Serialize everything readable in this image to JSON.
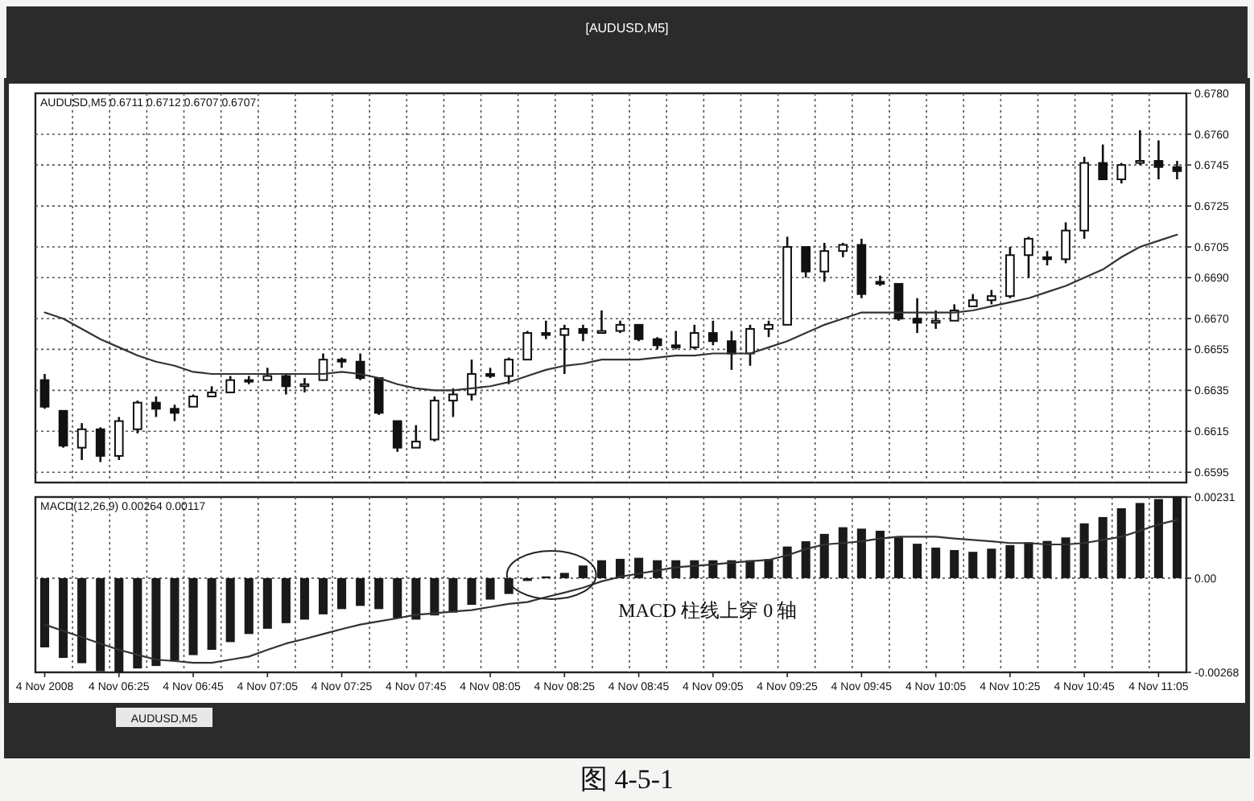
{
  "chart_data": [
    {
      "type": "candlestick",
      "title": "[AUDUSD,M5]",
      "subtitle": "AUDUSD,M5  0.6711 0.6712 0.6707 0.6707",
      "categories": [
        null,
        null,
        null,
        null,
        null,
        null,
        null,
        null,
        null,
        null,
        null,
        null,
        null,
        null,
        null,
        null,
        null,
        null,
        null,
        null,
        null,
        null,
        null,
        null,
        null,
        null,
        null,
        null,
        null,
        null,
        null,
        null,
        null,
        null,
        null,
        null,
        null,
        null,
        null,
        null,
        null,
        null,
        null,
        null,
        null,
        null,
        null,
        null,
        null,
        null,
        null,
        null,
        null,
        null,
        null,
        null,
        null,
        null,
        null,
        null,
        null,
        null
      ],
      "ohlc": [
        [
          0.664,
          0.6643,
          0.6626,
          0.6627
        ],
        [
          0.6625,
          0.6625,
          0.6607,
          0.6608
        ],
        [
          0.6607,
          0.6619,
          0.6601,
          0.6616
        ],
        [
          0.6616,
          0.6617,
          0.66,
          0.6603
        ],
        [
          0.6603,
          0.6622,
          0.6601,
          0.662
        ],
        [
          0.6616,
          0.663,
          0.6614,
          0.6629
        ],
        [
          0.6629,
          0.6632,
          0.6622,
          0.6626
        ],
        [
          0.6626,
          0.6628,
          0.662,
          0.6624
        ],
        [
          0.6627,
          0.6633,
          0.6627,
          0.6632
        ],
        [
          0.6632,
          0.6637,
          0.6632,
          0.6634
        ],
        [
          0.6634,
          0.6642,
          0.6634,
          0.664
        ],
        [
          0.664,
          0.6642,
          0.6638,
          0.664
        ],
        [
          0.664,
          0.6646,
          0.664,
          0.6642
        ],
        [
          0.6642,
          0.6643,
          0.6633,
          0.6637
        ],
        [
          0.6637,
          0.6641,
          0.6634,
          0.6638
        ],
        [
          0.664,
          0.6653,
          0.664,
          0.665
        ],
        [
          0.665,
          0.6651,
          0.6646,
          0.6649
        ],
        [
          0.6649,
          0.6653,
          0.664,
          0.6641
        ],
        [
          0.6641,
          0.6641,
          0.6623,
          0.6624
        ],
        [
          0.662,
          0.662,
          0.6605,
          0.6607
        ],
        [
          0.6607,
          0.6618,
          0.6607,
          0.661
        ],
        [
          0.6611,
          0.6632,
          0.661,
          0.663
        ],
        [
          0.663,
          0.6636,
          0.6622,
          0.6633
        ],
        [
          0.6633,
          0.665,
          0.663,
          0.6643
        ],
        [
          0.6643,
          0.6646,
          0.6641,
          0.6642
        ],
        [
          0.6642,
          0.6651,
          0.6638,
          0.665
        ],
        [
          0.665,
          0.6664,
          0.665,
          0.6663
        ],
        [
          0.6663,
          0.6669,
          0.666,
          0.6662
        ],
        [
          0.6662,
          0.6667,
          0.6643,
          0.6665
        ],
        [
          0.6665,
          0.6667,
          0.6659,
          0.6663
        ],
        [
          0.6663,
          0.6674,
          0.6663,
          0.6664
        ],
        [
          0.6664,
          0.6669,
          0.6663,
          0.6667
        ],
        [
          0.6667,
          0.6667,
          0.6659,
          0.666
        ],
        [
          0.666,
          0.6661,
          0.6655,
          0.6657
        ],
        [
          0.6657,
          0.6664,
          0.6655,
          0.6656
        ],
        [
          0.6656,
          0.6667,
          0.6655,
          0.6663
        ],
        [
          0.6663,
          0.6669,
          0.6657,
          0.6659
        ],
        [
          0.6659,
          0.6664,
          0.6645,
          0.6653
        ],
        [
          0.6653,
          0.6667,
          0.6647,
          0.6665
        ],
        [
          0.6665,
          0.6669,
          0.6661,
          0.6667
        ],
        [
          0.6667,
          0.671,
          0.6667,
          0.6705
        ],
        [
          0.6705,
          0.6705,
          0.669,
          0.6693
        ],
        [
          0.6693,
          0.6707,
          0.6688,
          0.6703
        ],
        [
          0.6703,
          0.6707,
          0.67,
          0.6706
        ],
        [
          0.6706,
          0.6709,
          0.668,
          0.6682
        ],
        [
          0.6688,
          0.6691,
          0.6686,
          0.6687
        ],
        [
          0.6687,
          0.6687,
          0.6669,
          0.667
        ],
        [
          0.667,
          0.668,
          0.6663,
          0.6668
        ],
        [
          0.6668,
          0.6674,
          0.6665,
          0.6669
        ],
        [
          0.6669,
          0.6677,
          0.6669,
          0.6674
        ],
        [
          0.6676,
          0.6682,
          0.6676,
          0.6679
        ],
        [
          0.6679,
          0.6684,
          0.6677,
          0.6681
        ],
        [
          0.6681,
          0.6705,
          0.668,
          0.6701
        ],
        [
          0.6701,
          0.671,
          0.669,
          0.6709
        ],
        [
          0.67,
          0.6703,
          0.6696,
          0.6699
        ],
        [
          0.6699,
          0.6717,
          0.6697,
          0.6713
        ],
        [
          0.6713,
          0.6749,
          0.6709,
          0.6746
        ],
        [
          0.6746,
          0.6755,
          0.6738,
          0.6738
        ],
        [
          0.6738,
          0.6746,
          0.6736,
          0.6745
        ],
        [
          0.6746,
          0.6762,
          0.6745,
          0.6747
        ],
        [
          0.6747,
          0.6757,
          0.6738,
          0.6744
        ],
        [
          0.6744,
          0.6747,
          0.6738,
          0.6742
        ]
      ],
      "series": [
        {
          "type": "line",
          "color": "#333333",
          "values": [
            0.6673,
            0.667,
            0.6665,
            0.666,
            0.6656,
            0.6652,
            0.6649,
            0.6647,
            0.6644,
            0.6643,
            0.6643,
            0.6643,
            0.6643,
            0.6643,
            0.6643,
            0.6643,
            0.6644,
            0.6643,
            0.6641,
            0.6638,
            0.6636,
            0.6635,
            0.6635,
            0.6636,
            0.6637,
            0.6639,
            0.6642,
            0.6645,
            0.6647,
            0.6648,
            0.665,
            0.665,
            0.665,
            0.6651,
            0.6652,
            0.6652,
            0.6653,
            0.6653,
            0.6653,
            0.6656,
            0.6659,
            0.6663,
            0.6667,
            0.667,
            0.6673,
            0.6673,
            0.6673,
            0.6673,
            0.6673,
            0.6673,
            0.6674,
            0.6676,
            0.6678,
            0.668,
            0.6683,
            0.6686,
            0.669,
            0.6694,
            0.67,
            0.6705,
            0.6708,
            0.6711
          ]
        }
      ],
      "ylim": [
        0.659,
        0.678
      ],
      "yticks": [
        {
          "value": 0.678,
          "label": "0.6780"
        },
        {
          "value": 0.676,
          "label": "0.6760"
        },
        0.6745,
        0.6725,
        0.6705,
        {
          "value": 0.669,
          "label": "0.6690"
        },
        {
          "value": 0.667,
          "label": "0.6670"
        },
        0.6655,
        0.6635,
        0.6615,
        0.6595
      ],
      "grid": true,
      "tick_labels": "y"
    },
    {
      "type": "bar",
      "subtitle": "MACD(12,26,9) 0.00264 0.00117",
      "categories": [
        "4 Nov 2008",
        null,
        null,
        null,
        "4 Nov 06:25",
        null,
        null,
        null,
        "4 Nov 06:45",
        null,
        null,
        null,
        "4 Nov 07:05",
        null,
        null,
        null,
        "4 Nov 07:25",
        null,
        null,
        null,
        "4 Nov 07:45",
        null,
        null,
        null,
        "4 Nov 08:05",
        null,
        null,
        null,
        "4 Nov 08:25",
        null,
        null,
        null,
        "4 Nov 08:45",
        null,
        null,
        null,
        "4 Nov 09:05",
        null,
        null,
        null,
        "4 Nov 09:25",
        null,
        null,
        null,
        "4 Nov 09:45",
        null,
        null,
        null,
        "4 Nov 10:05",
        null,
        null,
        null,
        "4 Nov 10:25",
        null,
        null,
        null,
        "4 Nov 10:45",
        null,
        null,
        null,
        "4 Nov 11:05",
        null
      ],
      "series": [
        {
          "type": "bar",
          "color": "#1a1a1a",
          "values": [
            -0.00197,
            -0.00227,
            -0.00242,
            -0.00265,
            -0.00268,
            -0.00257,
            -0.0025,
            -0.00235,
            -0.00219,
            -0.00204,
            -0.00182,
            -0.00159,
            -0.00144,
            -0.00128,
            -0.00118,
            -0.00103,
            -0.00088,
            -0.00079,
            -0.00088,
            -0.00114,
            -0.00118,
            -0.00106,
            -0.00098,
            -0.00076,
            -0.00061,
            -0.00045,
            -8e-05,
            5e-05,
            0.00015,
            0.00036,
            0.00051,
            0.00055,
            0.00058,
            0.00051,
            0.00051,
            0.00051,
            0.00051,
            0.00051,
            0.00051,
            0.00054,
            0.0009,
            0.00105,
            0.00126,
            0.00145,
            0.00141,
            0.00135,
            0.00116,
            0.00098,
            0.00087,
            0.0008,
            0.00075,
            0.00084,
            0.00094,
            0.00102,
            0.00106,
            0.00116,
            0.00156,
            0.00174,
            0.00199,
            0.00214,
            0.00225,
            0.0023
          ]
        },
        {
          "type": "line",
          "color": "#333333",
          "values": [
            -0.00132,
            -0.0015,
            -0.00168,
            -0.00186,
            -0.00204,
            -0.00218,
            -0.00232,
            -0.00236,
            -0.00241,
            -0.00241,
            -0.00232,
            -0.00223,
            -0.00204,
            -0.00186,
            -0.00173,
            -0.00159,
            -0.00145,
            -0.00132,
            -0.00123,
            -0.00114,
            -0.00104,
            -0.001,
            -0.00095,
            -0.00091,
            -0.00082,
            -0.00073,
            -0.00068,
            -0.00054,
            -0.00041,
            -0.00027,
            -9e-05,
            4e-05,
            0.00013,
            0.00022,
            0.00031,
            0.00035,
            0.00039,
            0.00044,
            0.00048,
            0.00052,
            0.00065,
            0.00083,
            0.00096,
            0.001,
            0.00105,
            0.00113,
            0.00118,
            0.00118,
            0.00118,
            0.00113,
            0.00109,
            0.00105,
            0.001,
            0.001,
            0.00096,
            0.00096,
            0.001,
            0.00109,
            0.00118,
            0.00135,
            0.00153,
            0.00166
          ]
        }
      ],
      "ylim": [
        -0.00268,
        0.00231
      ],
      "yticks": [
        0.00231,
        {
          "value": 0,
          "label": "0.00"
        },
        -0.00268
      ],
      "grid": true,
      "annotations": [
        {
          "text": "MACD 柱线上穿 0 轴",
          "y": 0
        },
        "AUDUSD,M5",
        "图 4-5-1"
      ]
    }
  ]
}
